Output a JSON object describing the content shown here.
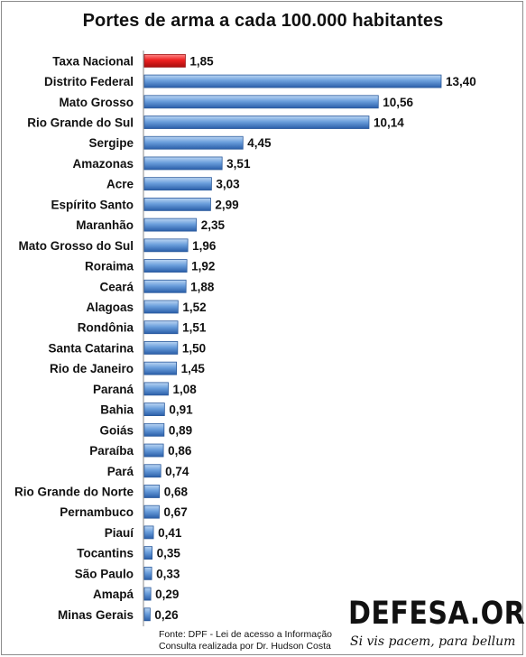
{
  "chart_data": {
    "type": "bar",
    "orientation": "horizontal",
    "title": "Portes de arma a cada 100.000 habitantes",
    "categories": [
      "Taxa Nacional",
      "Distrito Federal",
      "Mato Grosso",
      "Rio Grande do Sul",
      "Sergipe",
      "Amazonas",
      "Acre",
      "Espírito Santo",
      "Maranhão",
      "Mato Grosso do Sul",
      "Roraima",
      "Ceará",
      "Alagoas",
      "Rondônia",
      "Santa Catarina",
      "Rio de Janeiro",
      "Paraná",
      "Bahia",
      "Goiás",
      "Paraíba",
      "Pará",
      "Rio Grande do Norte",
      "Pernambuco",
      "Piauí",
      "Tocantins",
      "São Paulo",
      "Amapá",
      "Minas Gerais"
    ],
    "values": [
      1.85,
      13.4,
      10.56,
      10.14,
      4.45,
      3.51,
      3.03,
      2.99,
      2.35,
      1.96,
      1.92,
      1.88,
      1.52,
      1.51,
      1.5,
      1.45,
      1.08,
      0.91,
      0.89,
      0.86,
      0.74,
      0.68,
      0.67,
      0.41,
      0.35,
      0.33,
      0.29,
      0.26
    ],
    "value_labels": [
      "1,85",
      "13,40",
      "10,56",
      "10,14",
      "4,45",
      "3,51",
      "3,03",
      "2,99",
      "2,35",
      "1,96",
      "1,92",
      "1,88",
      "1,52",
      "1,51",
      "1,50",
      "1,45",
      "1,08",
      "0,91",
      "0,89",
      "0,86",
      "0,74",
      "0,68",
      "0,67",
      "0,41",
      "0,35",
      "0,33",
      "0,29",
      "0,26"
    ],
    "highlight_index": 0,
    "highlight_color": "#e8121a",
    "bar_color": "#4f86cc",
    "xlim": [
      0,
      13.4
    ],
    "grid": false,
    "legend": "none"
  },
  "footer": {
    "source_line1": "Fonte: DPF - Lei de acesso a Informação",
    "source_line2": "Consulta realizada por Dr. Hudson Costa",
    "logo_text": "DEFESA.ORG",
    "slogan": "Si vis pacem, para bellum"
  }
}
